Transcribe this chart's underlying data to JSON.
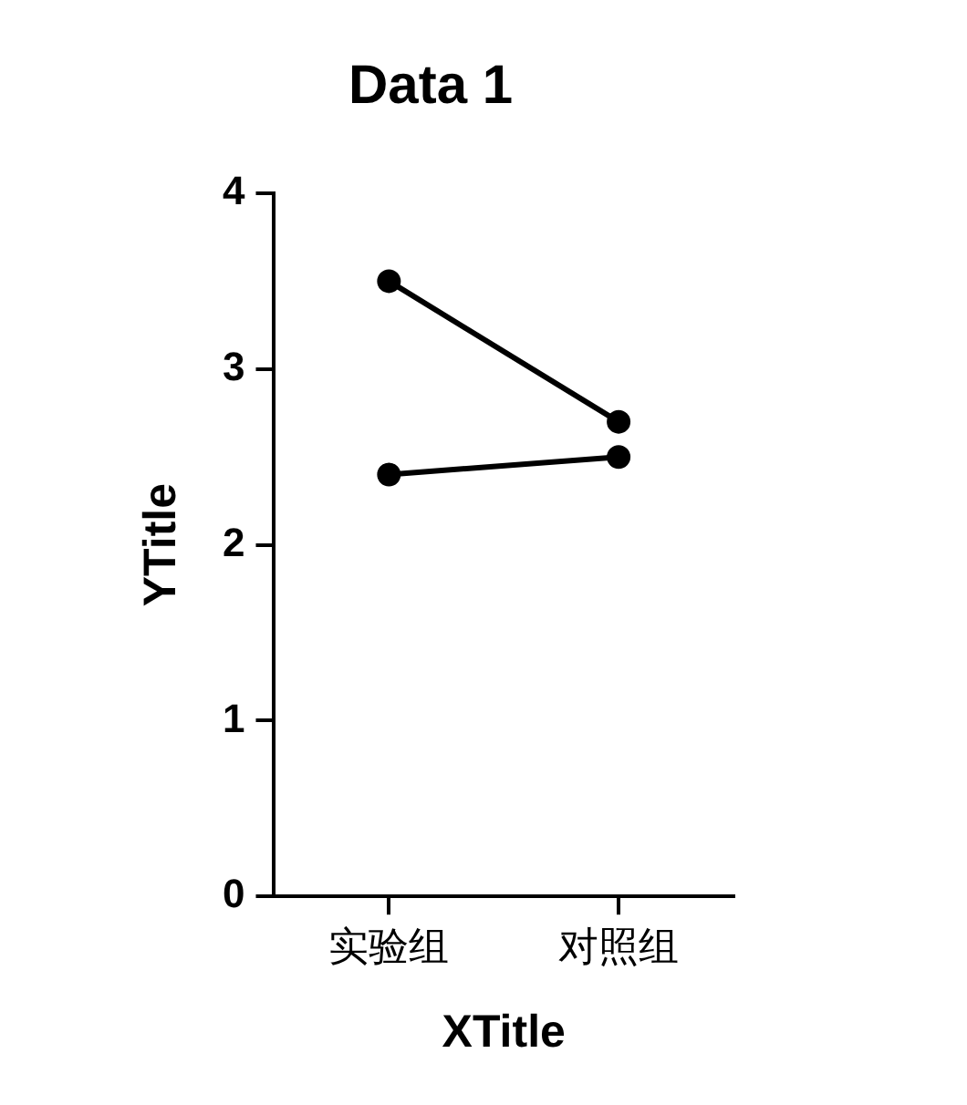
{
  "chart_data": {
    "type": "line",
    "title": "Data 1",
    "xlabel": "XTitle",
    "ylabel": "YTitle",
    "categories": [
      "实验组",
      "对照组"
    ],
    "series": [
      {
        "color": "#000000",
        "values": [
          3.5,
          2.7
        ]
      },
      {
        "color": "#000000",
        "values": [
          2.4,
          2.5
        ]
      }
    ],
    "ylim": [
      0,
      4
    ],
    "yticks": [
      0,
      1,
      2,
      3,
      4
    ],
    "grid": false,
    "legend": false,
    "marker": "circle",
    "line_style": "solid"
  }
}
